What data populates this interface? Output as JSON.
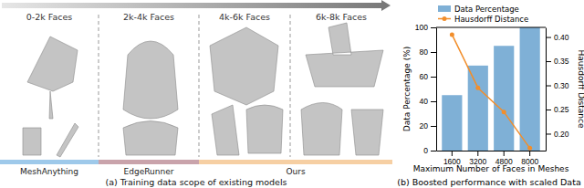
{
  "panel_a": {
    "ranges": [
      "0-2k Faces",
      "2k-4k Faces",
      "4k-6k Faces",
      "6k-8k Faces"
    ],
    "models": [
      "MeshAnything",
      "EdgeRunner",
      "Ours"
    ],
    "caption": "(a) Training data scope of existing models"
  },
  "chart_data": {
    "type": "bar",
    "title": "(b) Boosted performance with scaled Data",
    "x_label": "Maximum Number of Faces in Meshes",
    "y_label": "Data Percentage (%)",
    "y2_label": "Hausdorff Distance",
    "categories": [
      "1600",
      "3200",
      "4800",
      "8000"
    ],
    "series": [
      {
        "name": "Data Percentage",
        "type": "bar",
        "color": "#7fb0d6",
        "values": [
          45,
          69,
          85,
          100
        ]
      },
      {
        "name": "Hausdorff Distance",
        "type": "line",
        "axis": "y2",
        "marker": "circle",
        "color": "#f28e2b",
        "values": [
          0.405,
          0.295,
          0.245,
          0.17
        ]
      }
    ],
    "ylim": [
      0,
      100
    ],
    "yticks": [
      0,
      20,
      40,
      60,
      80,
      100
    ],
    "y2lim": [
      0.165,
      0.42
    ],
    "y2ticks": [
      {
        "value": 0.2,
        "label": "0.20"
      },
      {
        "value": 0.25,
        "label": "0.25"
      },
      {
        "value": 0.3,
        "label": "0.30"
      },
      {
        "value": 0.35,
        "label": "0.35"
      },
      {
        "value": 0.4,
        "label": "0.40"
      }
    ],
    "legend": "upper left",
    "grid": false
  }
}
